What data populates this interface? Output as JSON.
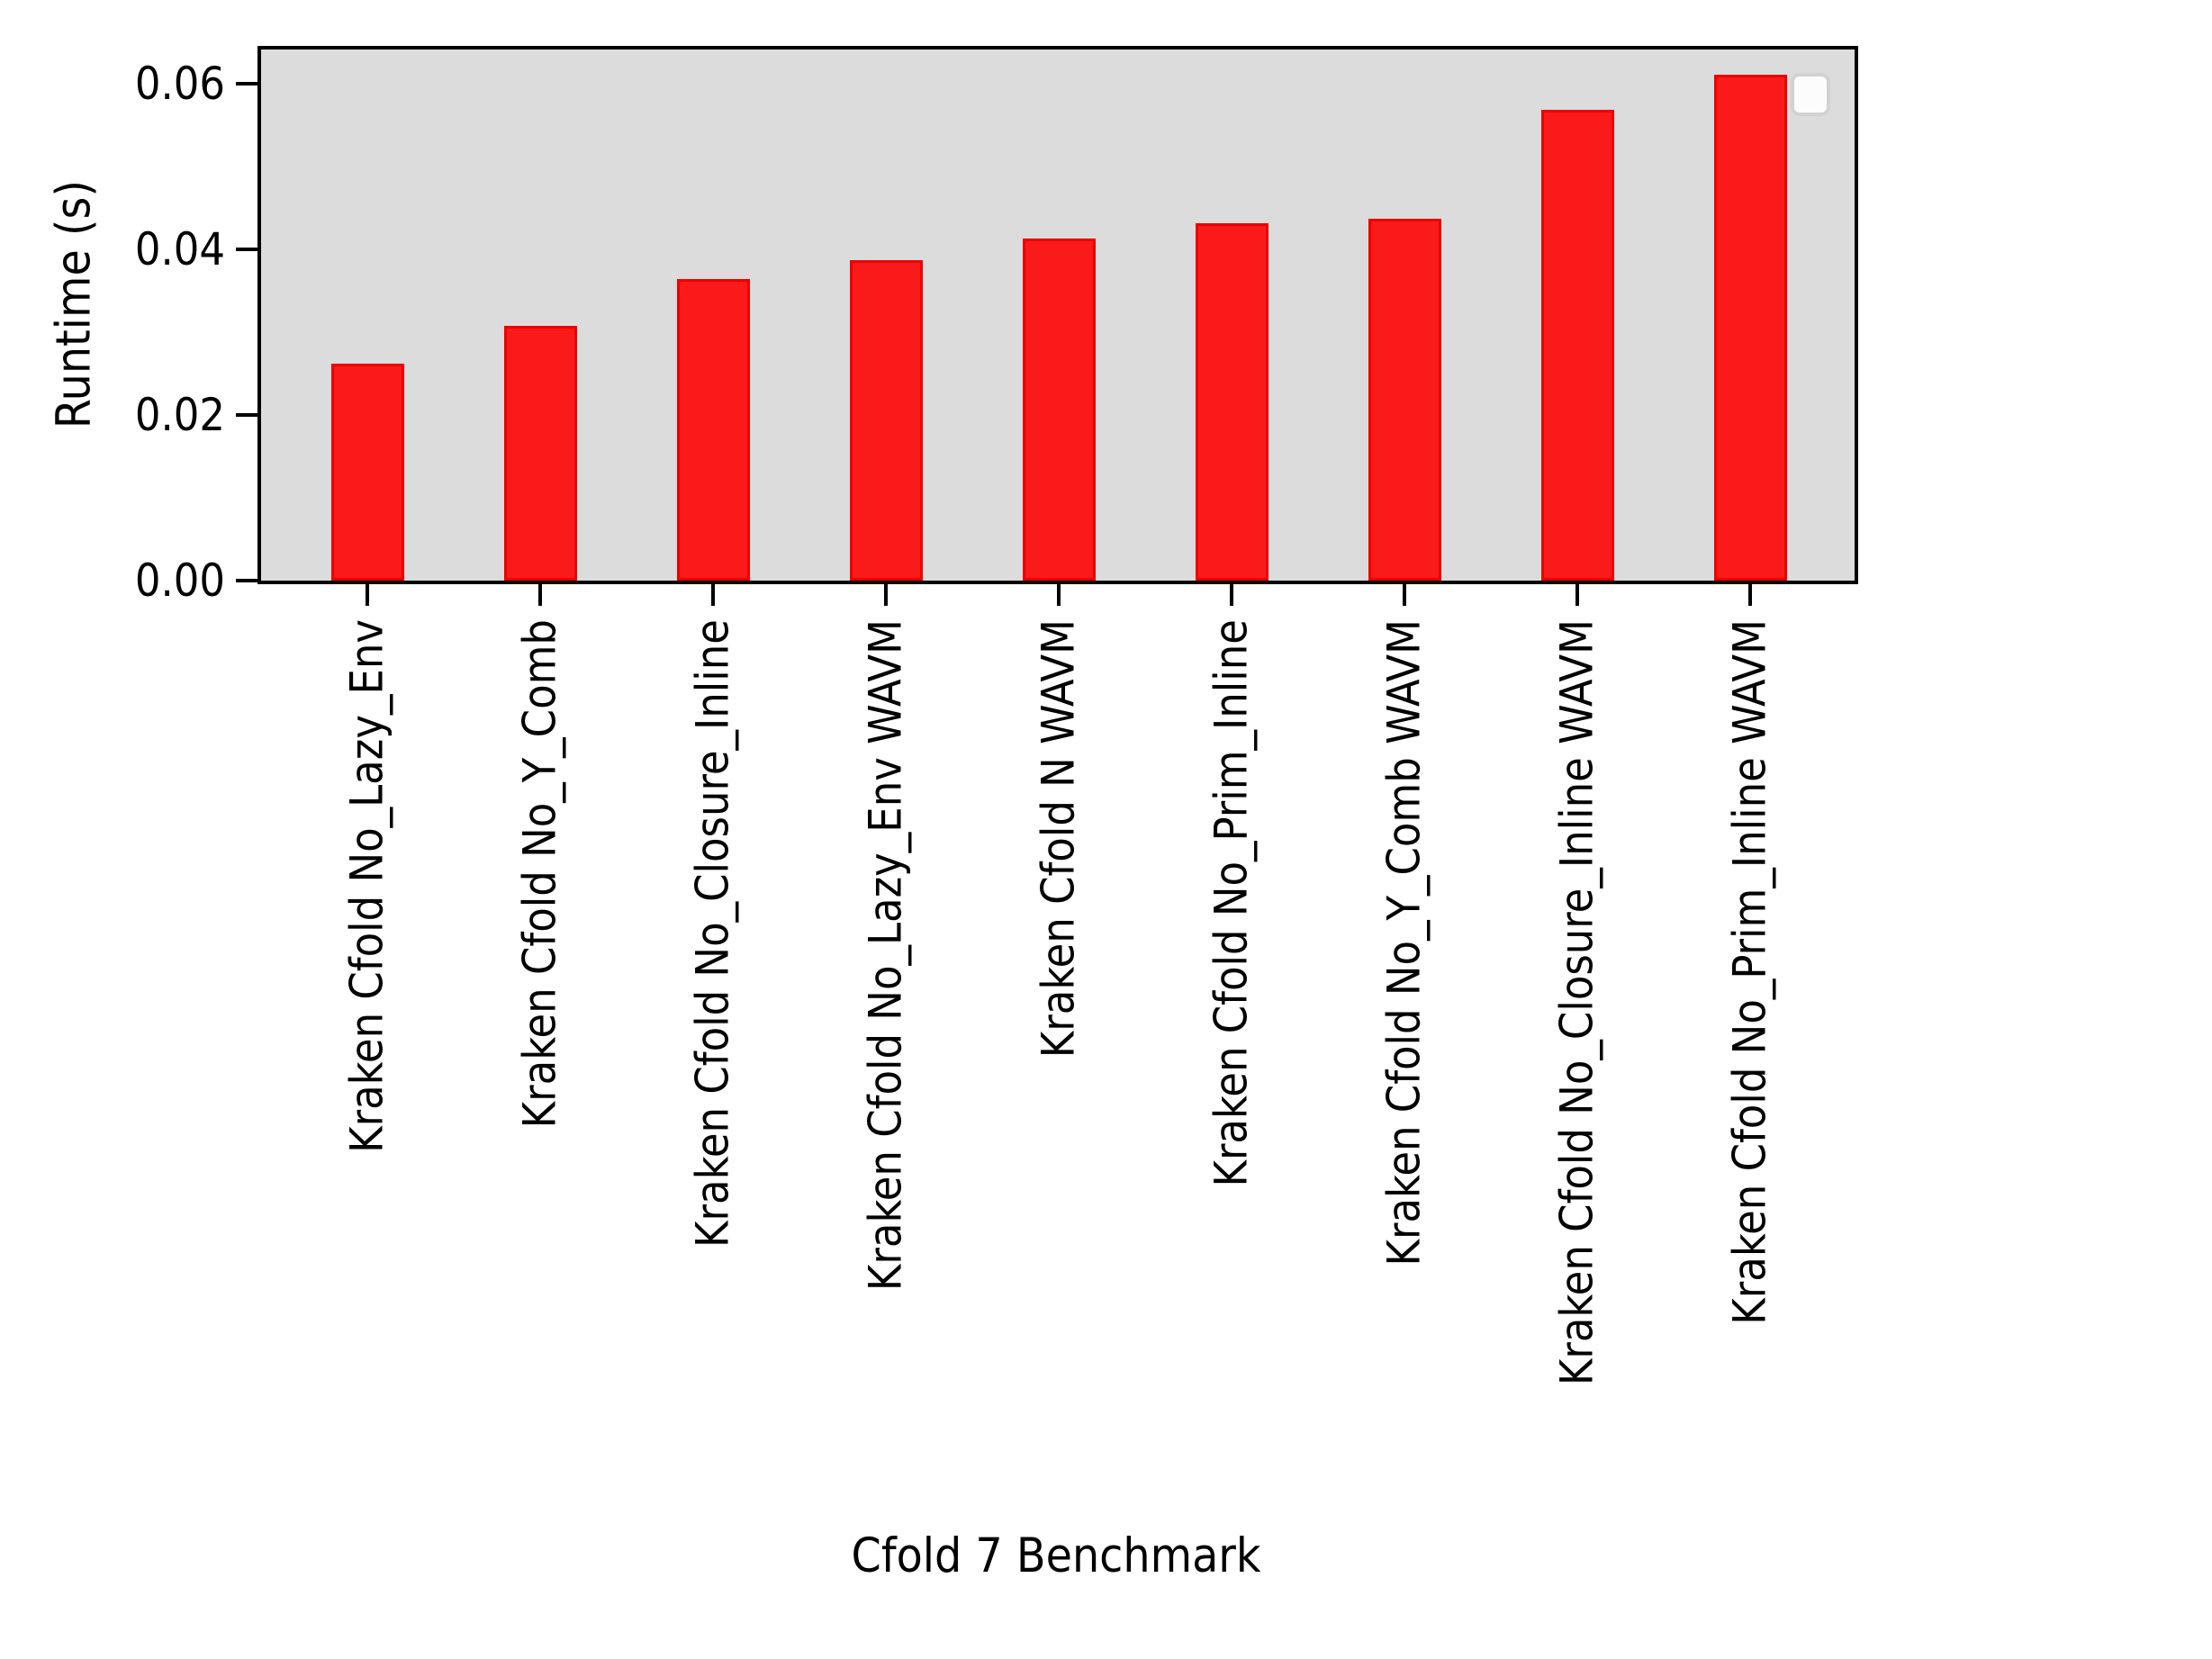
{
  "figure": {
    "background": "#ffffff",
    "plot_background": "#dcdcdc",
    "spine_color": "#000000"
  },
  "chart_data": {
    "type": "bar",
    "title": "",
    "xlabel": "Cfold 7 Benchmark",
    "ylabel": "Runtime (s)",
    "categories": [
      "Kraken Cfold No_Lazy_Env",
      "Kraken Cfold No_Y_Comb",
      "Kraken Cfold No_Closure_Inline",
      "Kraken Cfold No_Lazy_Env WAVM",
      "Kraken Cfold N WAVM",
      "Kraken Cfold No_Prim_Inline",
      "Kraken Cfold No_Y_Comb WAVM",
      "Kraken Cfold No_Closure_Inline WAVM",
      "Kraken Cfold No_Prim_Inline WAVM"
    ],
    "values": [
      0.0262,
      0.0308,
      0.0364,
      0.0387,
      0.0413,
      0.0431,
      0.0437,
      0.0568,
      0.0611
    ],
    "bar_color": "#fa1a1a",
    "bar_edge_color": "#ee0000",
    "ylim": [
      0,
      0.0641
    ],
    "ytick_labels": [
      "0.00",
      "0.02",
      "0.04",
      "0.06"
    ],
    "ytick_values": [
      0.0,
      0.02,
      0.04,
      0.06
    ],
    "grid": false,
    "legend": {
      "present": true,
      "entries": [],
      "position": "upper right"
    }
  }
}
